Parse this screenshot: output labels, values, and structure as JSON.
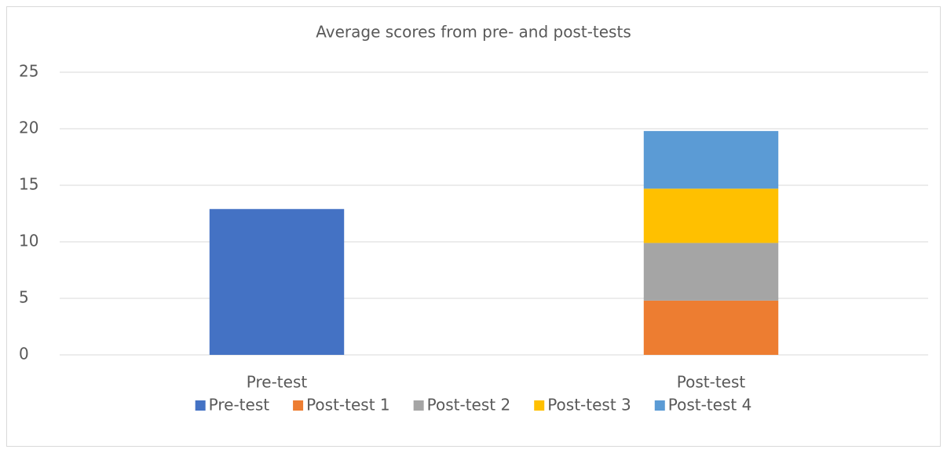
{
  "chart_data": {
    "type": "stacked_bar",
    "title": "Average scores from pre- and post-tests",
    "categories": [
      "Pre-test",
      "Post-test"
    ],
    "series": [
      {
        "name": "Pre-test",
        "color": "#4472c4",
        "values": [
          12.9,
          null
        ]
      },
      {
        "name": "Post-test 1",
        "color": "#ed7d31",
        "values": [
          null,
          4.8
        ]
      },
      {
        "name": "Post-test 2",
        "color": "#a5a5a5",
        "values": [
          null,
          5.1
        ]
      },
      {
        "name": "Post-test 3",
        "color": "#ffc000",
        "values": [
          null,
          4.8
        ]
      },
      {
        "name": "Post-test 4",
        "color": "#5b9bd5",
        "values": [
          null,
          5.1
        ]
      }
    ],
    "ylim": [
      0,
      25
    ],
    "yticks": [
      0,
      5,
      10,
      15,
      20,
      25
    ],
    "grid": true,
    "legend": "bottom"
  }
}
